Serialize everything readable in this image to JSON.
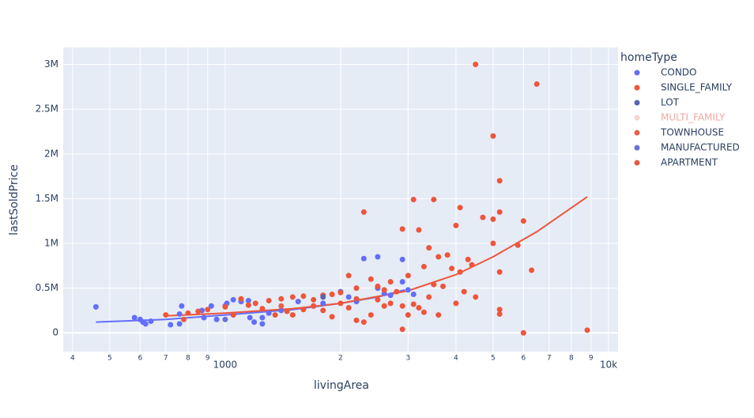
{
  "chart_data": {
    "type": "scatter",
    "x_label": "livingArea",
    "y_label": "lastSoldPrice",
    "legend_title": "homeType",
    "x_log": true,
    "grid": true,
    "legend_position": "right",
    "xlim": [
      378,
      10590
    ],
    "ylim": [
      -210000,
      3190000
    ],
    "xticks": [
      {
        "value": 400,
        "label": "4"
      },
      {
        "value": 500,
        "label": "5"
      },
      {
        "value": 600,
        "label": "6"
      },
      {
        "value": 700,
        "label": "7"
      },
      {
        "value": 800,
        "label": "8"
      },
      {
        "value": 900,
        "label": "9"
      },
      1000,
      {
        "value": 2000,
        "label": "2"
      },
      {
        "value": 3000,
        "label": "3"
      },
      {
        "value": 4000,
        "label": "4"
      },
      {
        "value": 5000,
        "label": "5"
      },
      {
        "value": 6000,
        "label": "6"
      },
      {
        "value": 7000,
        "label": "7"
      },
      {
        "value": 8000,
        "label": "8"
      },
      {
        "value": 9000,
        "label": "9"
      },
      {
        "value": 10000,
        "label": "10k"
      }
    ],
    "yticks": [
      0,
      {
        "value": 500000,
        "label": "0.5M"
      },
      {
        "value": 1000000,
        "label": "1M"
      },
      {
        "value": 1500000,
        "label": "1.5M"
      },
      {
        "value": 2000000,
        "label": "2M"
      },
      {
        "value": 2500000,
        "label": "2.5M"
      },
      {
        "value": 3000000,
        "label": "3M"
      }
    ],
    "series": [
      {
        "name": "CONDO",
        "color": "#636efa",
        "x": [
          460,
          580,
          600,
          610,
          620,
          640,
          720,
          760,
          760,
          770,
          870,
          880,
          920,
          950,
          1000,
          1010,
          1050,
          1100,
          1150,
          1160,
          1190,
          1250,
          1250,
          1300,
          1400,
          1550,
          1700,
          1800,
          2000,
          2100,
          2200,
          2300,
          2500,
          2500,
          2700,
          2900,
          2900,
          3000,
          3100,
          2600
        ],
        "values": [
          290000,
          170000,
          150000,
          120000,
          100000,
          130000,
          90000,
          100000,
          210000,
          300000,
          250000,
          170000,
          300000,
          150000,
          300000,
          330000,
          370000,
          350000,
          360000,
          170000,
          120000,
          170000,
          100000,
          220000,
          250000,
          350000,
          300000,
          330000,
          460000,
          400000,
          350000,
          830000,
          850000,
          500000,
          420000,
          820000,
          570000,
          480000,
          430000,
          440000
        ]
      },
      {
        "name": "SINGLE_FAMILY",
        "color": "#ef553b",
        "x": [
          4500,
          6500,
          5000,
          5200,
          5200,
          4700,
          5000,
          6000,
          3100,
          3500,
          4100,
          2300,
          4000,
          2900,
          3200,
          5000,
          5800,
          3400,
          3800,
          3600,
          4300,
          4400,
          3300,
          3900,
          4100,
          5200,
          6300,
          3000,
          2100,
          2400,
          2700,
          3500,
          3700,
          2500,
          2200,
          2600,
          2800,
          2000,
          1900,
          1800,
          1600,
          1500,
          1400,
          1300,
          1200,
          1150,
          1000,
          900,
          850,
          800,
          780,
          700,
          1700,
          1700,
          1600,
          1500,
          1350,
          1250,
          1800,
          2000,
          2100,
          2200,
          2400,
          2700,
          2900,
          3000,
          3100,
          3300,
          3600,
          4000,
          3200,
          4500,
          5200,
          5200,
          6000,
          8800,
          2900,
          2300,
          1900,
          1450,
          1100,
          1050,
          2500,
          2600,
          3400,
          4200
        ],
        "values": [
          3000000,
          2780000,
          2200000,
          1700000,
          1350000,
          1290000,
          1270000,
          1250000,
          1490000,
          1490000,
          1400000,
          1350000,
          1200000,
          1160000,
          1150000,
          1000000,
          980000,
          950000,
          870000,
          850000,
          820000,
          760000,
          740000,
          720000,
          680000,
          680000,
          700000,
          640000,
          640000,
          600000,
          570000,
          540000,
          520000,
          520000,
          500000,
          480000,
          460000,
          450000,
          430000,
          420000,
          410000,
          400000,
          380000,
          360000,
          330000,
          310000,
          290000,
          260000,
          240000,
          220000,
          150000,
          200000,
          370000,
          300000,
          260000,
          200000,
          200000,
          270000,
          250000,
          330000,
          280000,
          140000,
          200000,
          330000,
          300000,
          200000,
          320000,
          230000,
          200000,
          330000,
          280000,
          400000,
          260000,
          210000,
          0,
          30000,
          40000,
          120000,
          180000,
          240000,
          380000,
          200000,
          370000,
          300000,
          400000,
          460000
        ]
      },
      {
        "name": "LOT",
        "color": "#5b63b0",
        "x": [
          1800
        ],
        "values": [
          400000
        ]
      },
      {
        "name": "MULTI_FAMILY",
        "color": "#f2a7a0",
        "visible": "legendonly",
        "x": [],
        "values": []
      },
      {
        "name": "TOWNHOUSE",
        "color": "#e8604a",
        "x": [
          1400
        ],
        "values": [
          300000
        ]
      },
      {
        "name": "MANUFACTURED",
        "color": "#6a72d8",
        "x": [
          1000
        ],
        "values": [
          150000
        ]
      },
      {
        "name": "APARTMENT",
        "color": "#e35a44",
        "x": [
          2200
        ],
        "values": [
          380000
        ]
      }
    ],
    "trendlines": [
      {
        "color": "#636efa",
        "x": [
          460,
          700,
          1000,
          1500,
          2000,
          2500,
          2940
        ],
        "values": [
          120000,
          150000,
          200000,
          260000,
          330000,
          400000,
          480000
        ]
      },
      {
        "color": "#ef553b",
        "x": [
          700,
          1000,
          1500,
          2000,
          3000,
          4000,
          5000,
          6500,
          8800
        ],
        "values": [
          190000,
          220000,
          270000,
          330000,
          470000,
          650000,
          850000,
          1130000,
          1520000
        ]
      }
    ]
  }
}
